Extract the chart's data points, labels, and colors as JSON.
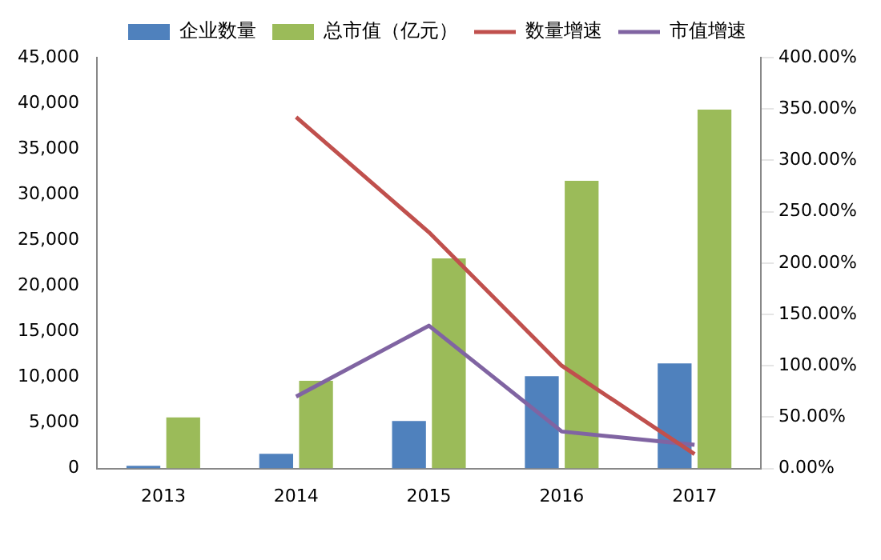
{
  "chart_data": {
    "type": "bar",
    "categories": [
      "2013",
      "2014",
      "2015",
      "2016",
      "2017"
    ],
    "series": [
      {
        "name": "企业数量",
        "color": "#4f81bd",
        "values": [
          300,
          1600,
          5200,
          10100,
          11500
        ]
      },
      {
        "name": "总市值（亿元）",
        "color": "#9bbb59",
        "values": [
          5600,
          9600,
          23000,
          31500,
          39300
        ]
      },
      {
        "name": "数量增速",
        "type": "line",
        "axis": "y2",
        "color": "#c0504d",
        "values": [
          null,
          342,
          230,
          100,
          14
        ]
      },
      {
        "name": "市值增速",
        "type": "line",
        "axis": "y2",
        "color": "#8064a2",
        "values": [
          null,
          70,
          139,
          36,
          23
        ]
      }
    ],
    "ylim": [
      0,
      45000
    ],
    "yticks": [
      {
        "value": 0,
        "label": "0"
      },
      {
        "value": 5000,
        "label": "5,000"
      },
      {
        "value": 10000,
        "label": "10,000"
      },
      {
        "value": 15000,
        "label": "15,000"
      },
      {
        "value": 20000,
        "label": "20,000"
      },
      {
        "value": 25000,
        "label": "25,000"
      },
      {
        "value": 30000,
        "label": "30,000"
      },
      {
        "value": 35000,
        "label": "35,000"
      },
      {
        "value": 40000,
        "label": "40,000"
      },
      {
        "value": 45000,
        "label": "45,000"
      }
    ],
    "y2lim": [
      0,
      400
    ],
    "y2ticks": [
      {
        "value": 0,
        "label": "0.00%"
      },
      {
        "value": 50,
        "label": "50.00%"
      },
      {
        "value": 100,
        "label": "100.00%"
      },
      {
        "value": 150,
        "label": "150.00%"
      },
      {
        "value": 200,
        "label": "200.00%"
      },
      {
        "value": 250,
        "label": "250.00%"
      },
      {
        "value": 300,
        "label": "300.00%"
      },
      {
        "value": 350,
        "label": "350.00%"
      },
      {
        "value": 400,
        "label": "400.00%"
      }
    ],
    "grid": false,
    "legend": "top",
    "marker": "none",
    "line_style": "solid"
  }
}
